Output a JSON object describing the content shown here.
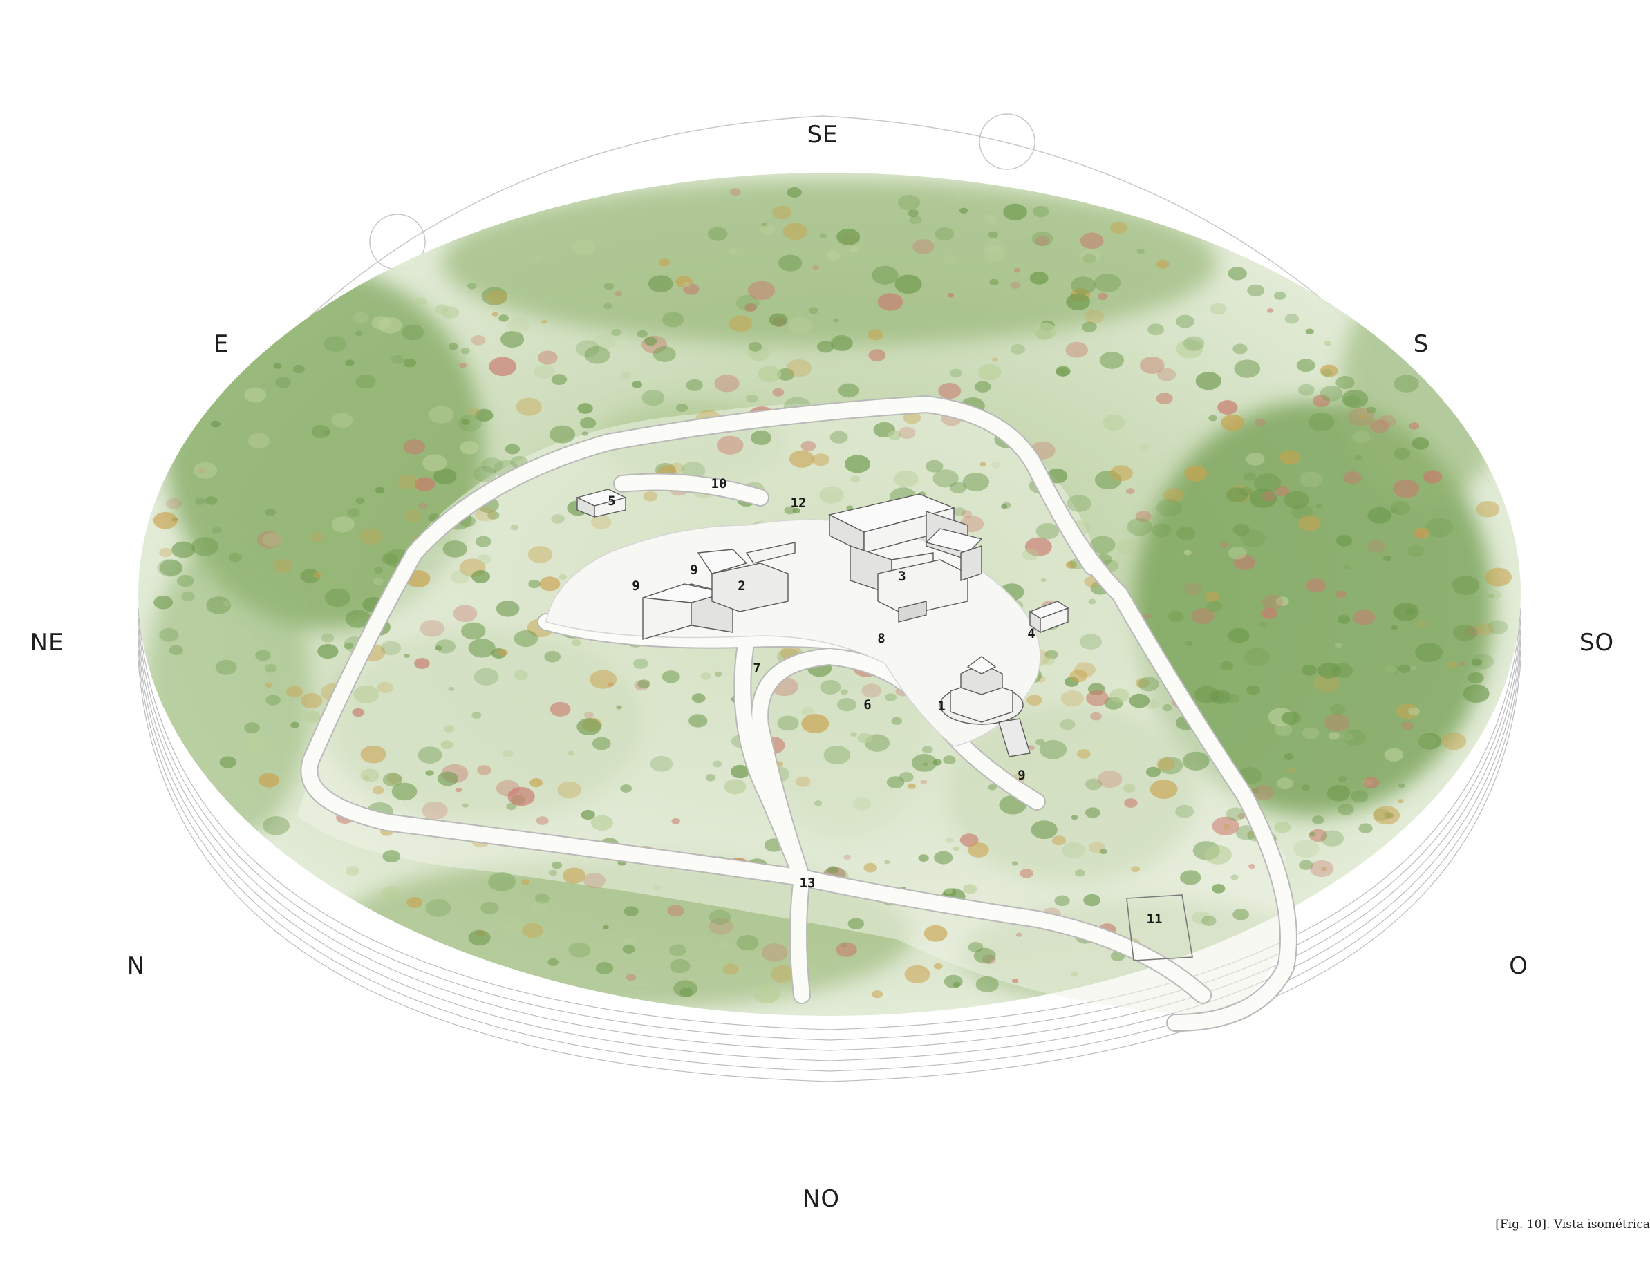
{
  "compass": {
    "se": "SE",
    "e": "E",
    "s": "S",
    "ne": "NE",
    "so": "SO",
    "n": "N",
    "o": "O",
    "no": "NO"
  },
  "site_labels": {
    "l1": "1",
    "l2": "2",
    "l3": "3",
    "l4": "4",
    "l5": "5",
    "l6": "6",
    "l7": "7",
    "l8": "8",
    "l9a": "9",
    "l9b": "9",
    "l9c": "9",
    "l10": "10",
    "l11": "11",
    "l12": "12",
    "l13": "13"
  },
  "caption": "[Fig. 10]. Vista isométrica",
  "colors": {
    "vegetation_dark": "#6f9a4e",
    "vegetation_light": "#b9cf9a",
    "flower_red": "#c97a6e",
    "flower_ochre": "#c9a24e",
    "path": "#f6f7f3",
    "line": "#9a9a9a"
  }
}
